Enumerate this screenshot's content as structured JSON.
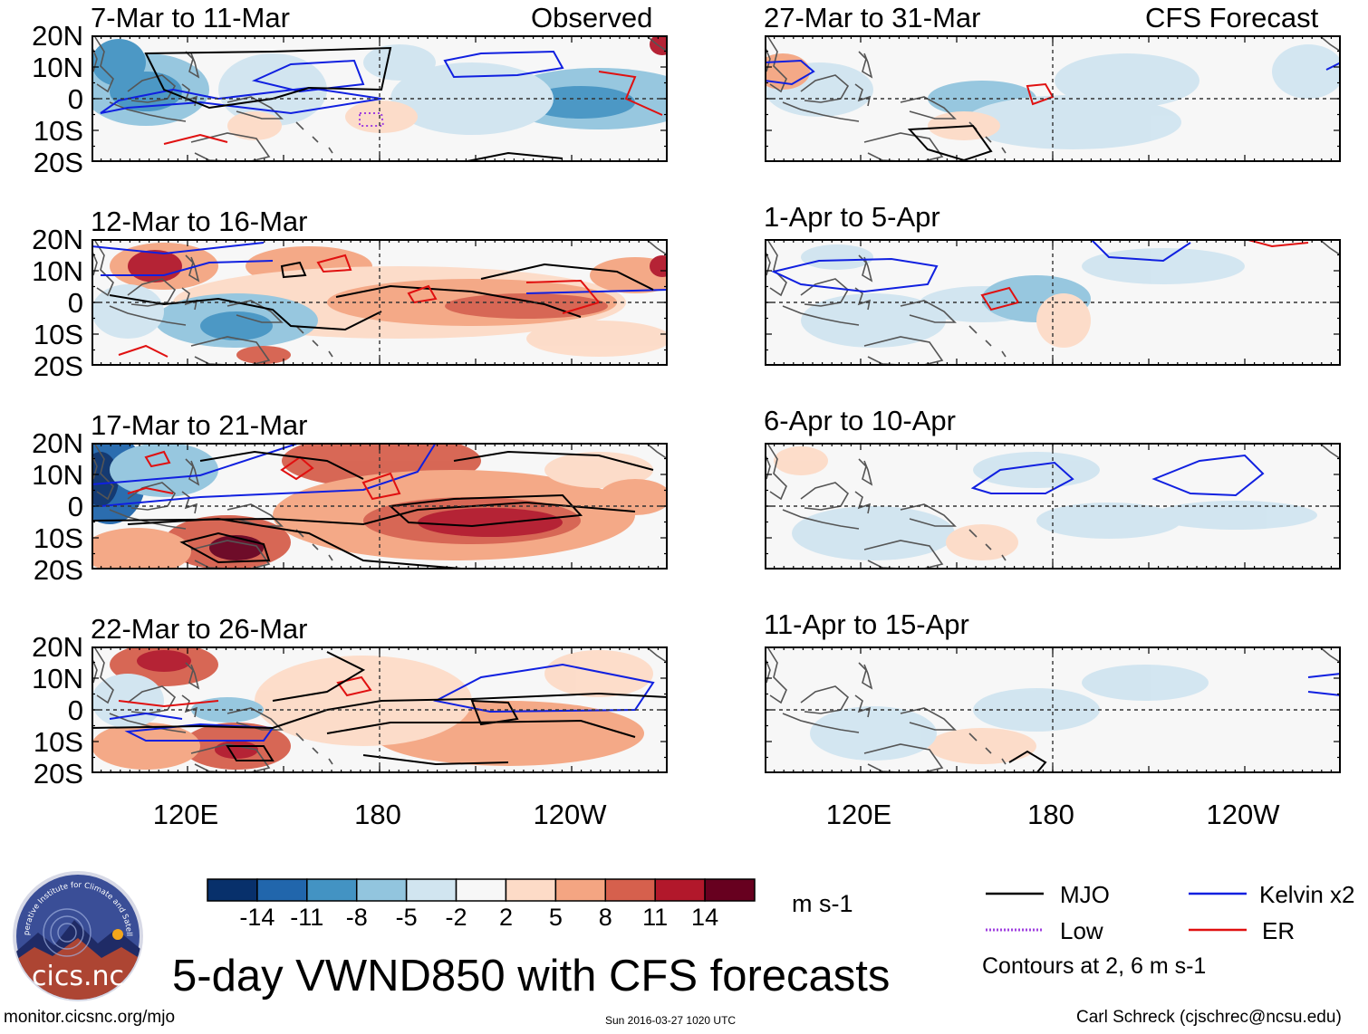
{
  "figure_title": "5-day VWND850 with CFS forecasts",
  "observed_label": "Observed",
  "forecast_label": "CFS Forecast",
  "footer": {
    "url": "monitor.cicsnc.org/mjo",
    "timestamp": "Sun 2016-03-27 1020 UTC",
    "author": "Carl Schreck (cjschrec@ncsu.edu)"
  },
  "logo": {
    "text": "cics.nc",
    "ring_text": "Cooperative Institute for Climate and Satellites"
  },
  "colors": {
    "mjo": "#000000",
    "low": "#a040e0",
    "kelvin": "#1020e0",
    "er": "#e01010",
    "neg": [
      "#08306b",
      "#2166ac",
      "#4393c3",
      "#92c5de",
      "#d1e5f0"
    ],
    "neutral": "#f7f7f7",
    "pos": [
      "#fddbc7",
      "#f4a582",
      "#d6604d",
      "#b2182b",
      "#67001f"
    ]
  },
  "chart_data": {
    "type": "heatmap",
    "variable": "VWND850",
    "units": "m s-1",
    "ylabels": [
      "20N",
      "10N",
      "0",
      "10S",
      "20S"
    ],
    "ylim": [
      -20,
      20
    ],
    "xlabels": [
      "120E",
      "180",
      "120W"
    ],
    "colorbar": {
      "levels": [
        "-14",
        "-11",
        "-8",
        "-5",
        "-2",
        "2",
        "5",
        "8",
        "11",
        "14"
      ],
      "colors": [
        "#08306b",
        "#2166ac",
        "#4393c3",
        "#92c5de",
        "#d1e5f0",
        "#f7f7f7",
        "#fddbc7",
        "#f4a582",
        "#d6604d",
        "#b2182b",
        "#67001f"
      ],
      "units": "m s-1"
    },
    "legend": {
      "entries": [
        {
          "name": "MJO",
          "color": "#000000",
          "style": "solid"
        },
        {
          "name": "Low",
          "color": "#a040e0",
          "style": "dotted"
        },
        {
          "name": "Kelvin x2",
          "color": "#1020e0",
          "style": "solid"
        },
        {
          "name": "ER",
          "color": "#e01010",
          "style": "solid"
        }
      ],
      "note": "Contours at 2, 6 m s-1"
    },
    "panels": [
      {
        "id": "obs1",
        "title": "7-Mar to 11-Mar",
        "source": "Observed"
      },
      {
        "id": "obs2",
        "title": "12-Mar to 16-Mar",
        "source": "Observed"
      },
      {
        "id": "obs3",
        "title": "17-Mar to 21-Mar",
        "source": "Observed"
      },
      {
        "id": "obs4",
        "title": "22-Mar to 26-Mar",
        "source": "Observed"
      },
      {
        "id": "fc1",
        "title": "27-Mar to 31-Mar",
        "source": "CFS Forecast"
      },
      {
        "id": "fc2",
        "title": "1-Apr to 5-Apr",
        "source": "CFS Forecast"
      },
      {
        "id": "fc3",
        "title": "6-Apr to 10-Apr",
        "source": "CFS Forecast"
      },
      {
        "id": "fc4",
        "title": "11-Apr to 15-Apr",
        "source": "CFS Forecast"
      }
    ]
  }
}
